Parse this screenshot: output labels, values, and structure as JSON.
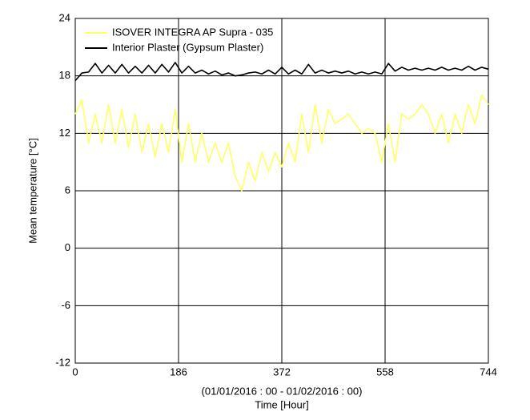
{
  "chart_data": {
    "type": "line",
    "ylabel": "Mean temperature [°C]",
    "xlabel": "Time  [Hour]",
    "xlabel_note": "(01/01/2016 : 00 - 01/02/2016 : 00)",
    "xlim": [
      0,
      744
    ],
    "xticks": [
      0,
      186,
      372,
      558,
      744
    ],
    "ylim": [
      -12,
      24
    ],
    "yticks": [
      -12,
      -6,
      0,
      6,
      12,
      18,
      24
    ],
    "grid": true,
    "legend": "upper left",
    "x": [
      0,
      12,
      24,
      36,
      48,
      60,
      72,
      84,
      96,
      108,
      120,
      132,
      144,
      156,
      168,
      180,
      192,
      204,
      216,
      228,
      240,
      252,
      264,
      276,
      288,
      300,
      312,
      324,
      336,
      348,
      360,
      372,
      384,
      396,
      408,
      420,
      432,
      444,
      456,
      468,
      480,
      492,
      504,
      516,
      528,
      540,
      552,
      564,
      576,
      588,
      600,
      612,
      624,
      636,
      648,
      660,
      672,
      684,
      696,
      708,
      720,
      732,
      744
    ],
    "series": [
      {
        "name": "ISOVER  INTEGRA  AP Supra - 035",
        "color": "#ffff66",
        "values": [
          14,
          15.5,
          11,
          14,
          11,
          15,
          11,
          14.5,
          10.5,
          14,
          10,
          13,
          9.5,
          13,
          10,
          14.5,
          9,
          13,
          9,
          12,
          9,
          11,
          9,
          11,
          7.5,
          6,
          9,
          7,
          10,
          8,
          10,
          8.5,
          11,
          9,
          14,
          10,
          15,
          11,
          14.5,
          13,
          13.5,
          14,
          13,
          12,
          12.5,
          12,
          9,
          13,
          9,
          14,
          13.5,
          14,
          15,
          14,
          12,
          14,
          11,
          14,
          12,
          15,
          13,
          16,
          15
        ]
      },
      {
        "name": "Interior Plaster (Gypsum Plaster)",
        "color": "#000000",
        "values": [
          17.5,
          18.3,
          18.4,
          19.3,
          18.3,
          19.1,
          18.3,
          19.2,
          18.3,
          19,
          18.3,
          19.1,
          18.3,
          19.2,
          18.4,
          19.4,
          18.3,
          19,
          18.3,
          18.6,
          18.2,
          18.5,
          18.1,
          18.3,
          18,
          18.1,
          18.3,
          18.4,
          18.2,
          18.6,
          18.2,
          18.9,
          18.2,
          18.6,
          18.2,
          19.2,
          18.3,
          18.6,
          18.3,
          18.5,
          18.3,
          18.5,
          18.2,
          18.4,
          18.2,
          18.4,
          18.2,
          19.3,
          18.5,
          18.9,
          18.6,
          18.8,
          18.6,
          18.8,
          18.6,
          18.9,
          18.6,
          18.8,
          18.6,
          19,
          18.6,
          18.9,
          18.7
        ]
      }
    ]
  }
}
